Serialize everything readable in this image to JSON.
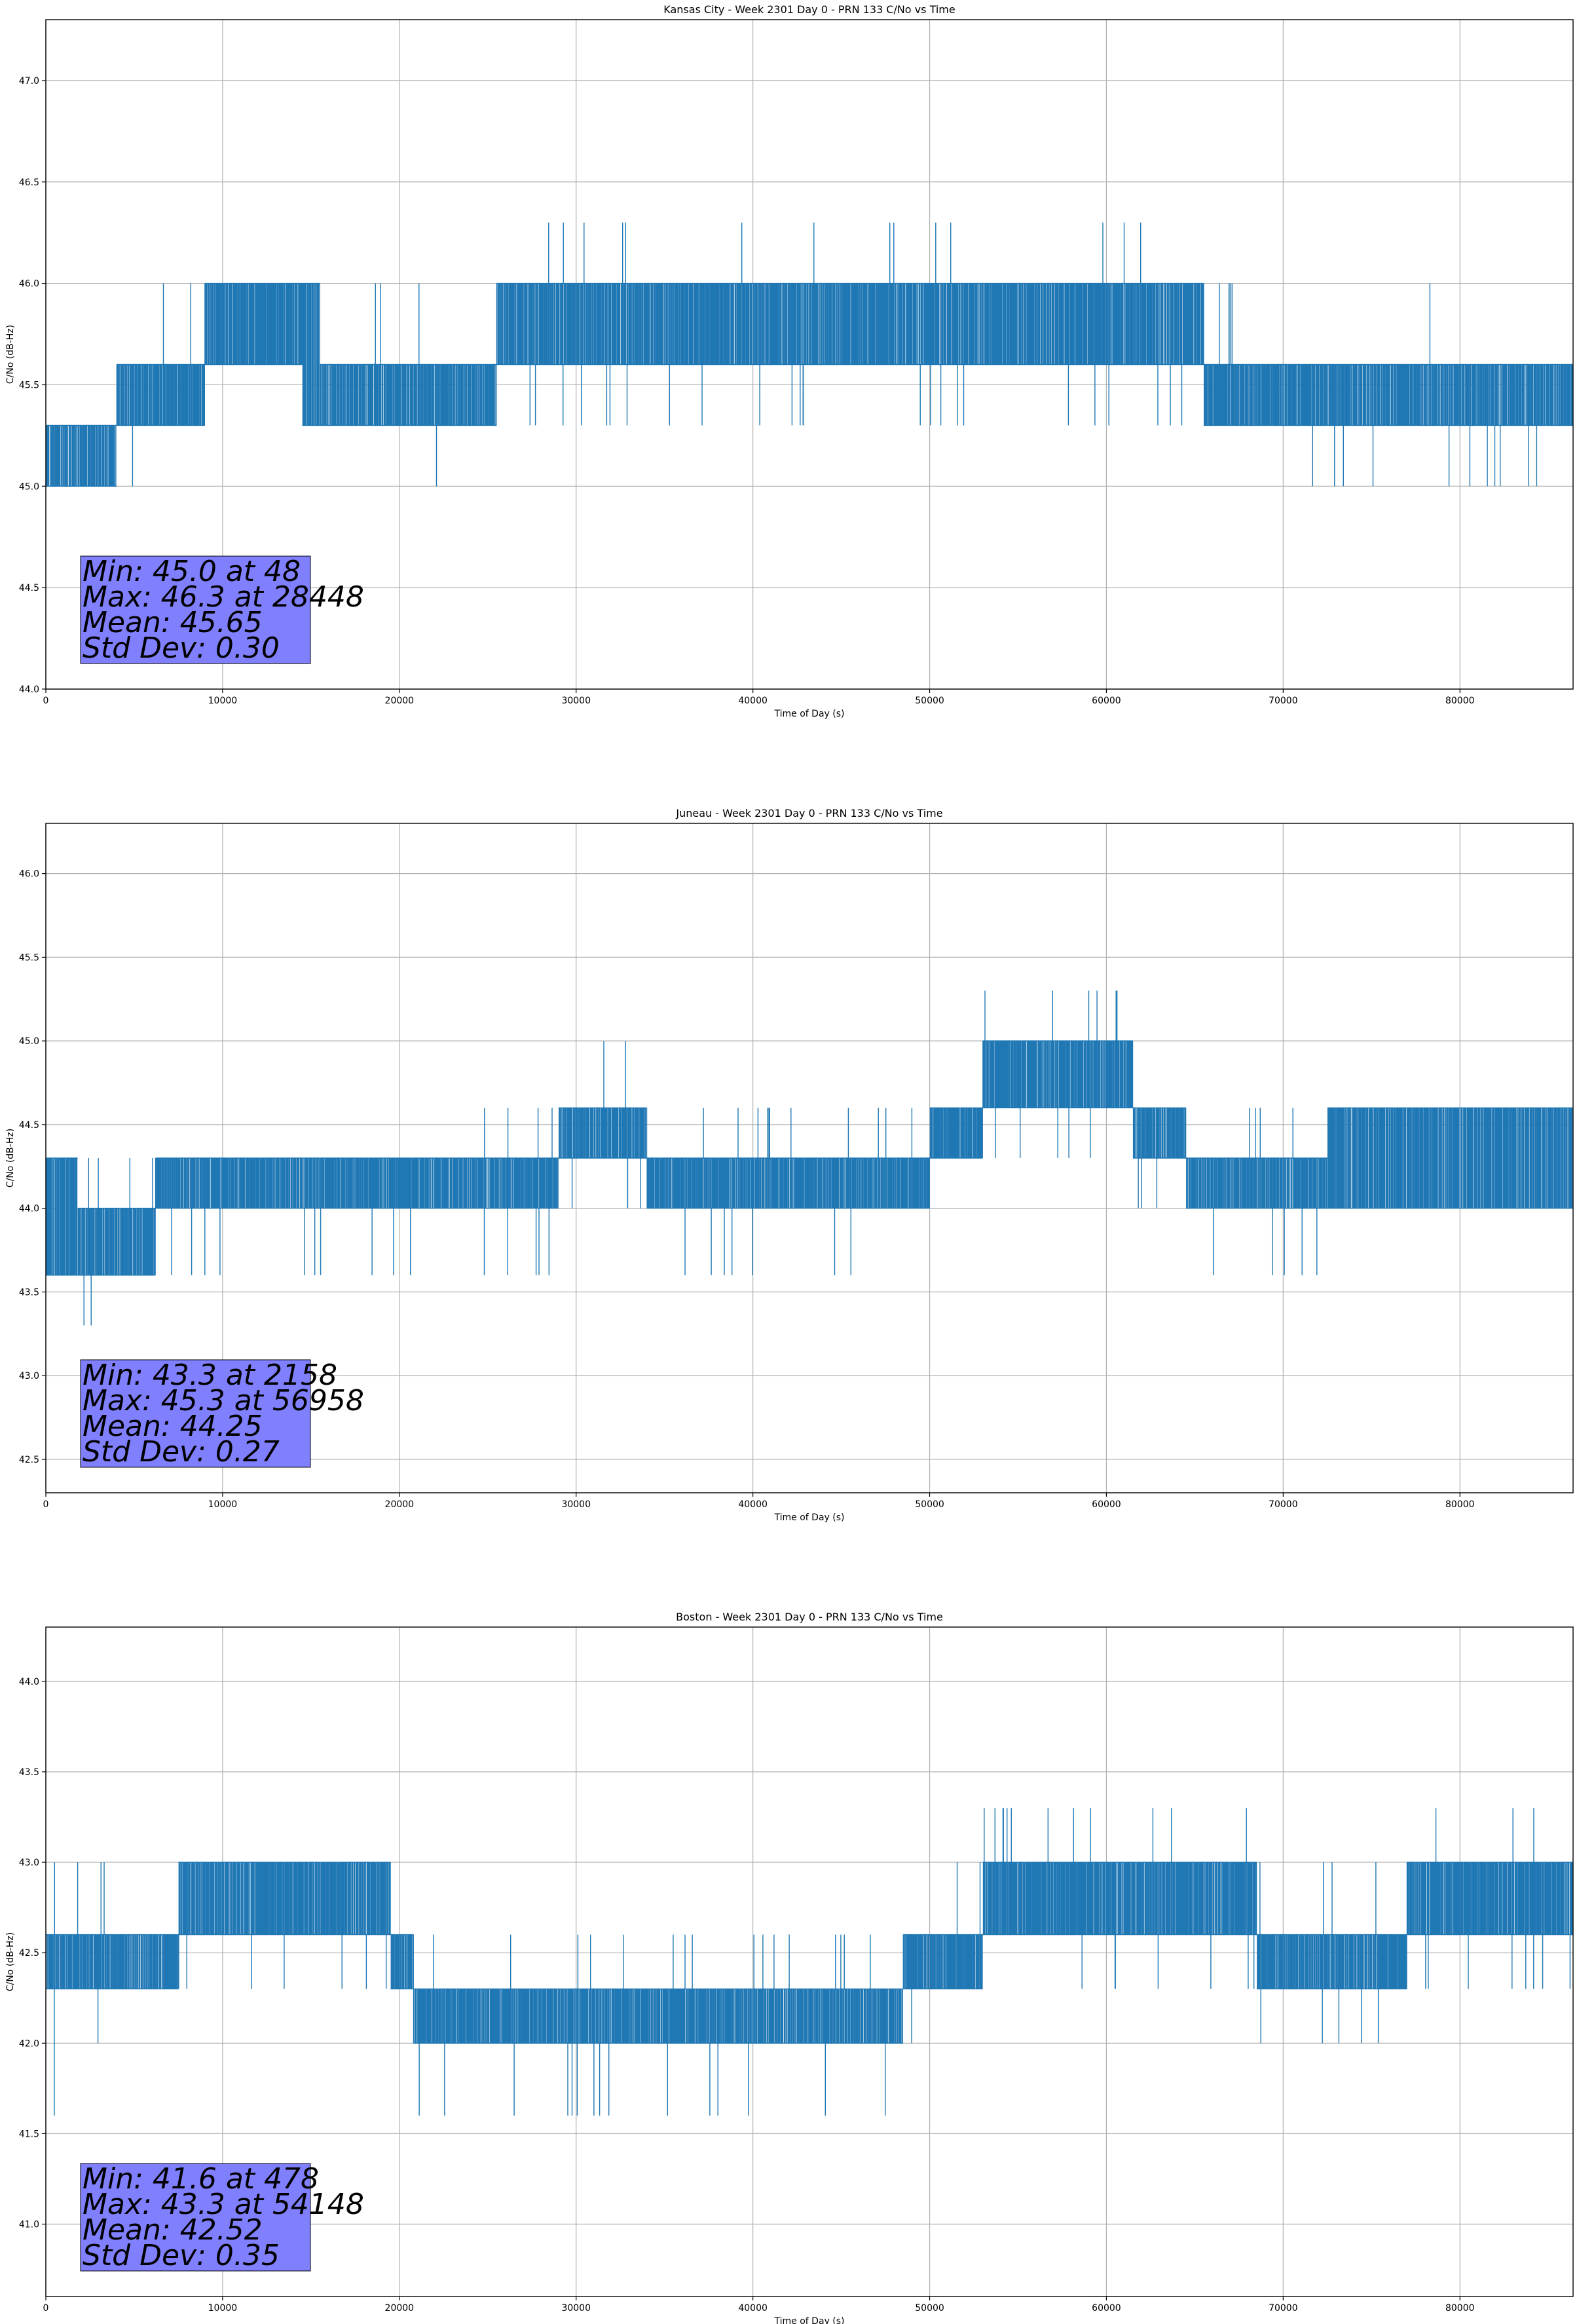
{
  "figure": {
    "series_color": "#1f77b4",
    "stats_box_color": "#8080ff"
  },
  "chart_data": [
    {
      "type": "line",
      "title": "Kansas City - Week 2301 Day 0 - PRN 133 C/No vs Time",
      "xlabel": "Time of Day (s)",
      "ylabel": "C/No (dB-Hz)",
      "xlim": [
        0,
        86400
      ],
      "ylim": [
        44.0,
        47.3
      ],
      "xticks": [
        0,
        10000,
        20000,
        30000,
        40000,
        50000,
        60000,
        70000,
        80000
      ],
      "xtick_labels": [
        "0",
        "10000",
        "20000",
        "30000",
        "40000",
        "50000",
        "60000",
        "70000",
        "80000"
      ],
      "yticks": [
        44.0,
        44.5,
        45.0,
        45.5,
        46.0,
        46.5,
        47.0
      ],
      "ytick_labels": [
        "44.0",
        "44.5",
        "45.0",
        "45.5",
        "46.0",
        "46.5",
        "47.0"
      ],
      "grid": true,
      "quantization_step": 0.3,
      "segments": [
        {
          "x0": 0,
          "x1": 1600,
          "low": 45.0,
          "high": 45.3,
          "down": 45.0,
          "up": 45.6
        },
        {
          "x0": 1600,
          "x1": 4000,
          "low": 45.0,
          "high": 45.3,
          "down": 45.0,
          "up": 45.3
        },
        {
          "x0": 4000,
          "x1": 5000,
          "low": 45.3,
          "high": 45.6,
          "down": 45.0,
          "up": 45.6
        },
        {
          "x0": 5000,
          "x1": 9000,
          "low": 45.3,
          "high": 45.6,
          "down": 45.3,
          "up": 46.0
        },
        {
          "x0": 9000,
          "x1": 14500,
          "low": 45.6,
          "high": 46.0,
          "down": 45.6,
          "up": 46.0
        },
        {
          "x0": 14500,
          "x1": 15500,
          "low": 45.3,
          "high": 46.0,
          "down": 45.3,
          "up": 46.0
        },
        {
          "x0": 15500,
          "x1": 25500,
          "low": 45.3,
          "high": 45.6,
          "down": 45.3,
          "up": 46.0
        },
        {
          "x0": 25500,
          "x1": 28000,
          "low": 45.6,
          "high": 46.0,
          "down": 45.3,
          "up": 46.0
        },
        {
          "x0": 28000,
          "x1": 37000,
          "low": 45.6,
          "high": 46.0,
          "down": 45.3,
          "up": 46.3
        },
        {
          "x0": 37000,
          "x1": 52000,
          "low": 45.6,
          "high": 46.0,
          "down": 45.3,
          "up": 46.3
        },
        {
          "x0": 52000,
          "x1": 57500,
          "low": 45.6,
          "high": 46.0,
          "down": 45.6,
          "up": 46.0
        },
        {
          "x0": 57500,
          "x1": 63500,
          "low": 45.6,
          "high": 46.0,
          "down": 45.3,
          "up": 46.3
        },
        {
          "x0": 63500,
          "x1": 65500,
          "low": 45.6,
          "high": 46.0,
          "down": 45.3,
          "up": 46.3
        },
        {
          "x0": 65500,
          "x1": 69500,
          "low": 45.3,
          "high": 45.6,
          "down": 45.3,
          "up": 46.0
        },
        {
          "x0": 69500,
          "x1": 76000,
          "low": 45.3,
          "high": 45.6,
          "down": 45.0,
          "up": 45.6
        },
        {
          "x0": 76000,
          "x1": 86400,
          "low": 45.3,
          "high": 45.6,
          "down": 45.0,
          "up": 45.6
        }
      ],
      "outliers": [
        {
          "x": 48,
          "y": 45.0
        },
        {
          "x": 22100,
          "y": 45.0
        },
        {
          "x": 28448,
          "y": 46.3
        },
        {
          "x": 78300,
          "y": 46.0
        }
      ],
      "stats": [
        "Min: 45.0 at 48",
        "Max: 46.3 at 28448",
        "Mean: 45.65",
        "Std Dev: 0.30"
      ]
    },
    {
      "type": "line",
      "title": "Juneau - Week 2301 Day 0 - PRN 133 C/No vs Time",
      "xlabel": "Time of Day (s)",
      "ylabel": "C/No (dB-Hz)",
      "xlim": [
        0,
        86400
      ],
      "ylim": [
        42.3,
        46.3
      ],
      "xticks": [
        0,
        10000,
        20000,
        30000,
        40000,
        50000,
        60000,
        70000,
        80000
      ],
      "xtick_labels": [
        "0",
        "10000",
        "20000",
        "30000",
        "40000",
        "50000",
        "60000",
        "70000",
        "80000"
      ],
      "yticks": [
        42.5,
        43.0,
        43.5,
        44.0,
        44.5,
        45.0,
        45.5,
        46.0
      ],
      "ytick_labels": [
        "42.5",
        "43.0",
        "43.5",
        "44.0",
        "44.5",
        "45.0",
        "45.5",
        "46.0"
      ],
      "grid": true,
      "quantization_step": 0.3,
      "segments": [
        {
          "x0": 0,
          "x1": 1800,
          "low": 43.6,
          "high": 44.3,
          "down": 43.6,
          "up": 44.3
        },
        {
          "x0": 1800,
          "x1": 6200,
          "low": 43.6,
          "high": 44.0,
          "down": 43.3,
          "up": 44.3
        },
        {
          "x0": 6200,
          "x1": 9000,
          "low": 44.0,
          "high": 44.3,
          "down": 43.6,
          "up": 44.3
        },
        {
          "x0": 9000,
          "x1": 15000,
          "low": 44.0,
          "high": 44.3,
          "down": 43.6,
          "up": 44.3
        },
        {
          "x0": 15000,
          "x1": 20000,
          "low": 44.0,
          "high": 44.3,
          "down": 43.6,
          "up": 44.3
        },
        {
          "x0": 20000,
          "x1": 29000,
          "low": 44.0,
          "high": 44.3,
          "down": 43.6,
          "up": 44.6
        },
        {
          "x0": 29000,
          "x1": 34000,
          "low": 44.3,
          "high": 44.6,
          "down": 44.0,
          "up": 45.0
        },
        {
          "x0": 34000,
          "x1": 50000,
          "low": 44.0,
          "high": 44.3,
          "down": 43.6,
          "up": 44.6
        },
        {
          "x0": 50000,
          "x1": 53000,
          "low": 44.3,
          "high": 44.6,
          "down": 44.0,
          "up": 44.6
        },
        {
          "x0": 53000,
          "x1": 61500,
          "low": 44.6,
          "high": 45.0,
          "down": 44.3,
          "up": 45.3
        },
        {
          "x0": 61500,
          "x1": 64500,
          "low": 44.3,
          "high": 44.6,
          "down": 44.0,
          "up": 45.0
        },
        {
          "x0": 64500,
          "x1": 72500,
          "low": 44.0,
          "high": 44.3,
          "down": 43.6,
          "up": 44.6
        },
        {
          "x0": 72500,
          "x1": 86400,
          "low": 44.0,
          "high": 44.6,
          "down": 44.0,
          "up": 44.6
        }
      ],
      "outliers": [
        {
          "x": 2158,
          "y": 43.3
        },
        {
          "x": 56958,
          "y": 45.3
        },
        {
          "x": 59000,
          "y": 45.3
        }
      ],
      "stats": [
        "Min: 43.3 at 2158",
        "Max: 45.3 at 56958",
        "Mean: 44.25",
        "Std Dev: 0.27"
      ]
    },
    {
      "type": "line",
      "title": "Boston - Week 2301 Day 0 - PRN 133 C/No vs Time",
      "xlabel": "Time of Day (s)",
      "ylabel": "C/No (dB-Hz)",
      "xlim": [
        0,
        86400
      ],
      "ylim": [
        40.6,
        44.3
      ],
      "xticks": [
        0,
        10000,
        20000,
        30000,
        40000,
        50000,
        60000,
        70000,
        80000
      ],
      "xtick_labels": [
        "0",
        "10000",
        "20000",
        "30000",
        "40000",
        "50000",
        "60000",
        "70000",
        "80000"
      ],
      "yticks": [
        41.0,
        41.5,
        42.0,
        42.5,
        43.0,
        43.5,
        44.0
      ],
      "ytick_labels": [
        "41.0",
        "41.5",
        "42.0",
        "42.5",
        "43.0",
        "43.5",
        "44.0"
      ],
      "grid": true,
      "quantization_step": 0.3,
      "segments": [
        {
          "x0": 0,
          "x1": 3000,
          "low": 42.3,
          "high": 42.6,
          "down": 42.0,
          "up": 43.0
        },
        {
          "x0": 3000,
          "x1": 7500,
          "low": 42.3,
          "high": 42.6,
          "down": 42.3,
          "up": 43.0
        },
        {
          "x0": 7500,
          "x1": 15000,
          "low": 42.6,
          "high": 43.0,
          "down": 42.3,
          "up": 43.0
        },
        {
          "x0": 15000,
          "x1": 19500,
          "low": 42.6,
          "high": 43.0,
          "down": 42.3,
          "up": 43.0
        },
        {
          "x0": 19500,
          "x1": 20800,
          "low": 42.3,
          "high": 42.6,
          "down": 42.0,
          "up": 42.6
        },
        {
          "x0": 20800,
          "x1": 33500,
          "low": 42.0,
          "high": 42.3,
          "down": 41.6,
          "up": 42.6
        },
        {
          "x0": 33500,
          "x1": 48500,
          "low": 42.0,
          "high": 42.3,
          "down": 41.6,
          "up": 42.6
        },
        {
          "x0": 48500,
          "x1": 51000,
          "low": 42.3,
          "high": 42.6,
          "down": 42.0,
          "up": 42.6
        },
        {
          "x0": 51000,
          "x1": 53000,
          "low": 42.3,
          "high": 42.6,
          "down": 42.3,
          "up": 43.0
        },
        {
          "x0": 53000,
          "x1": 58000,
          "low": 42.6,
          "high": 43.0,
          "down": 42.3,
          "up": 43.3
        },
        {
          "x0": 58000,
          "x1": 68500,
          "low": 42.6,
          "high": 43.0,
          "down": 42.3,
          "up": 43.3
        },
        {
          "x0": 68500,
          "x1": 77000,
          "low": 42.3,
          "high": 42.6,
          "down": 42.0,
          "up": 43.0
        },
        {
          "x0": 77000,
          "x1": 86400,
          "low": 42.6,
          "high": 43.0,
          "down": 42.3,
          "up": 43.3
        }
      ],
      "outliers": [
        {
          "x": 478,
          "y": 41.6
        },
        {
          "x": 54148,
          "y": 43.3
        },
        {
          "x": 83000,
          "y": 43.3
        }
      ],
      "stats": [
        "Min: 41.6 at 478",
        "Max: 43.3 at 54148",
        "Mean: 42.52",
        "Std Dev: 0.35"
      ]
    }
  ]
}
